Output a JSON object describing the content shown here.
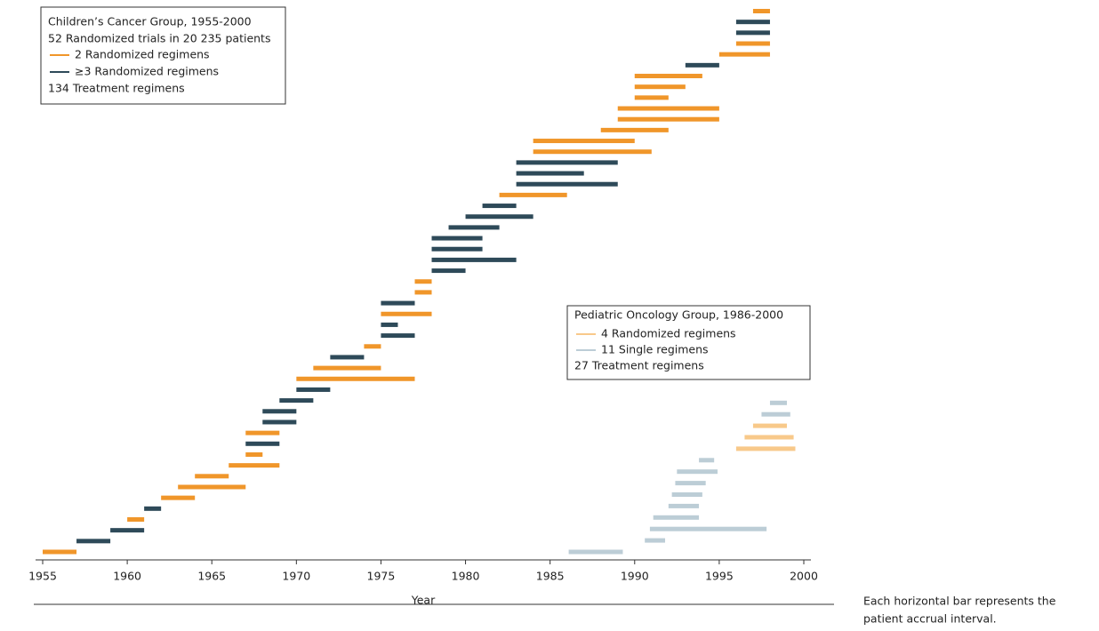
{
  "chart_data": {
    "type": "interval",
    "xlabel": "Year",
    "xlim": [
      1955,
      2000
    ],
    "xticks": [
      1955,
      1960,
      1965,
      1970,
      1975,
      1980,
      1985,
      1990,
      1995,
      2000
    ],
    "caption": [
      "Each horizontal bar represents the",
      "patient accrual interval."
    ],
    "groups": [
      {
        "title": "Children’s Cancer Group, 1955-2000",
        "subtitle": "52 Randomized trials in 20 235 patients",
        "series": [
          {
            "name": "2 Randomized regimens",
            "color": "#f0962a"
          },
          {
            "name": "≥3 Randomized regimens",
            "color": "#2e4a59"
          }
        ],
        "footer": "134 Treatment regimens",
        "bars": [
          {
            "start": 1955,
            "end": 1957,
            "series": 0
          },
          {
            "start": 1957,
            "end": 1959,
            "series": 1
          },
          {
            "start": 1959,
            "end": 1961,
            "series": 1
          },
          {
            "start": 1960,
            "end": 1961,
            "series": 0
          },
          {
            "start": 1961,
            "end": 1962,
            "series": 1
          },
          {
            "start": 1962,
            "end": 1964,
            "series": 0
          },
          {
            "start": 1963,
            "end": 1967,
            "series": 0
          },
          {
            "start": 1964,
            "end": 1966,
            "series": 0
          },
          {
            "start": 1966,
            "end": 1969,
            "series": 0
          },
          {
            "start": 1967,
            "end": 1968,
            "series": 0
          },
          {
            "start": 1967,
            "end": 1969,
            "series": 1
          },
          {
            "start": 1967,
            "end": 1969,
            "series": 0
          },
          {
            "start": 1968,
            "end": 1970,
            "series": 1
          },
          {
            "start": 1968,
            "end": 1970,
            "series": 1
          },
          {
            "start": 1969,
            "end": 1971,
            "series": 1
          },
          {
            "start": 1970,
            "end": 1972,
            "series": 1
          },
          {
            "start": 1970,
            "end": 1977,
            "series": 0
          },
          {
            "start": 1971,
            "end": 1975,
            "series": 0
          },
          {
            "start": 1972,
            "end": 1974,
            "series": 1
          },
          {
            "start": 1974,
            "end": 1975,
            "series": 0
          },
          {
            "start": 1975,
            "end": 1977,
            "series": 1
          },
          {
            "start": 1975,
            "end": 1976,
            "series": 1
          },
          {
            "start": 1975,
            "end": 1978,
            "series": 0
          },
          {
            "start": 1975,
            "end": 1977,
            "series": 1
          },
          {
            "start": 1977,
            "end": 1978,
            "series": 0
          },
          {
            "start": 1977,
            "end": 1978,
            "series": 0
          },
          {
            "start": 1978,
            "end": 1980,
            "series": 1
          },
          {
            "start": 1978,
            "end": 1983,
            "series": 1
          },
          {
            "start": 1978,
            "end": 1981,
            "series": 1
          },
          {
            "start": 1978,
            "end": 1981,
            "series": 1
          },
          {
            "start": 1979,
            "end": 1982,
            "series": 1
          },
          {
            "start": 1980,
            "end": 1984,
            "series": 1
          },
          {
            "start": 1981,
            "end": 1983,
            "series": 1
          },
          {
            "start": 1982,
            "end": 1986,
            "series": 0
          },
          {
            "start": 1983,
            "end": 1989,
            "series": 1
          },
          {
            "start": 1983,
            "end": 1987,
            "series": 1
          },
          {
            "start": 1983,
            "end": 1989,
            "series": 1
          },
          {
            "start": 1984,
            "end": 1991,
            "series": 0
          },
          {
            "start": 1984,
            "end": 1990,
            "series": 0
          },
          {
            "start": 1988,
            "end": 1992,
            "series": 0
          },
          {
            "start": 1989,
            "end": 1995,
            "series": 0
          },
          {
            "start": 1989,
            "end": 1995,
            "series": 0
          },
          {
            "start": 1990,
            "end": 1992,
            "series": 0
          },
          {
            "start": 1990,
            "end": 1993,
            "series": 0
          },
          {
            "start": 1990,
            "end": 1994,
            "series": 0
          },
          {
            "start": 1993,
            "end": 1995,
            "series": 1
          },
          {
            "start": 1995,
            "end": 1998,
            "series": 0
          },
          {
            "start": 1996,
            "end": 1998,
            "series": 0
          },
          {
            "start": 1996,
            "end": 1998,
            "series": 1
          },
          {
            "start": 1996,
            "end": 1998,
            "series": 1
          },
          {
            "start": 1997,
            "end": 1998,
            "series": 0
          }
        ]
      },
      {
        "title": "Pediatric Oncology Group, 1986-2000",
        "series": [
          {
            "name": "4 Randomized regimens",
            "color": "#f8c98a"
          },
          {
            "name": "11 Single regimens",
            "color": "#bccdd6"
          }
        ],
        "footer": "27 Treatment regimens",
        "bars": [
          {
            "start": 1986.1,
            "end": 1989.3,
            "series": 1
          },
          {
            "start": 1990.6,
            "end": 1991.8,
            "series": 1
          },
          {
            "start": 1990.9,
            "end": 1997.8,
            "series": 1
          },
          {
            "start": 1991.1,
            "end": 1993.8,
            "series": 1
          },
          {
            "start": 1992,
            "end": 1993.8,
            "series": 1
          },
          {
            "start": 1992.2,
            "end": 1994,
            "series": 1
          },
          {
            "start": 1992.4,
            "end": 1994.2,
            "series": 1
          },
          {
            "start": 1992.5,
            "end": 1994.9,
            "series": 1
          },
          {
            "start": 1993.8,
            "end": 1994.7,
            "series": 1
          },
          {
            "start": 1996,
            "end": 1999.5,
            "series": 0
          },
          {
            "start": 1996.5,
            "end": 1999.4,
            "series": 0
          },
          {
            "start": 1997,
            "end": 1999,
            "series": 0
          },
          {
            "start": 1997.5,
            "end": 1999.2,
            "series": 1
          },
          {
            "start": 1998,
            "end": 1999,
            "series": 1
          }
        ]
      }
    ]
  }
}
